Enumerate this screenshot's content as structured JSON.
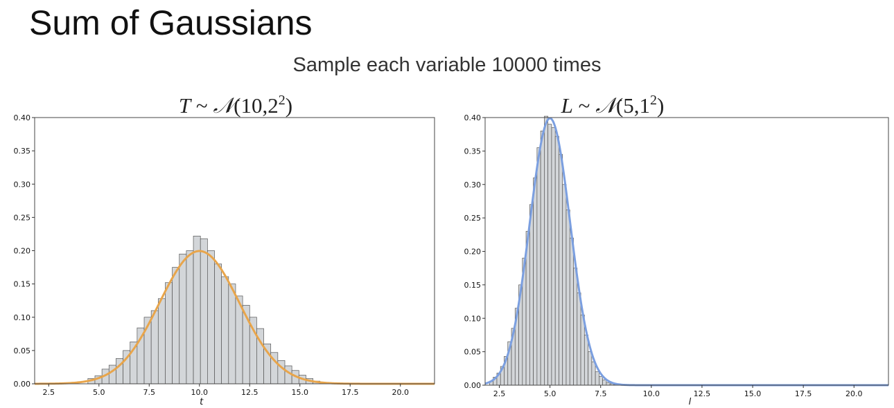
{
  "slide": {
    "title": "Sum of Gaussians",
    "subtitle": "Sample each variable 10000 times"
  },
  "chart_data": [
    {
      "type": "bar",
      "title": "T ~ 𝒩(10,2²)",
      "title_parts": {
        "var": "T",
        "dist": "(10,2",
        "exp": "2",
        "close": ")"
      },
      "xlabel": "t",
      "ylabel": "",
      "xlim": [
        1.8,
        21.7
      ],
      "ylim": [
        0,
        0.4
      ],
      "xticks": [
        "2.5",
        "5.0",
        "7.5",
        "10.0",
        "12.5",
        "15.0",
        "17.5",
        "20.0"
      ],
      "yticks": [
        "0.00",
        "0.05",
        "0.10",
        "0.15",
        "0.20",
        "0.25",
        "0.30",
        "0.35",
        "0.40"
      ],
      "grid": false,
      "histogram": {
        "bin_width": 0.35,
        "bins_start": [
          4.45,
          4.8,
          5.15,
          5.5,
          5.85,
          6.2,
          6.55,
          6.9,
          7.25,
          7.6,
          7.95,
          8.3,
          8.65,
          9.0,
          9.35,
          9.7,
          10.05,
          10.4,
          10.75,
          11.1,
          11.45,
          11.8,
          12.15,
          12.5,
          12.85,
          13.2,
          13.55,
          13.9,
          14.25,
          14.6,
          14.95,
          15.3,
          15.65
        ],
        "values": [
          0.008,
          0.012,
          0.022,
          0.028,
          0.038,
          0.05,
          0.063,
          0.084,
          0.1,
          0.11,
          0.128,
          0.152,
          0.175,
          0.195,
          0.2,
          0.222,
          0.218,
          0.2,
          0.18,
          0.161,
          0.15,
          0.132,
          0.118,
          0.1,
          0.083,
          0.06,
          0.047,
          0.035,
          0.027,
          0.02,
          0.013,
          0.008,
          0.004
        ]
      },
      "density_curve": {
        "mean": 10,
        "sd": 2,
        "color": "#E8A54B"
      },
      "bar_color": "#D3D6D9",
      "bar_edge": "#555555"
    },
    {
      "type": "bar",
      "title": "L ~ 𝒩(5,1²)",
      "title_parts": {
        "var": "L",
        "dist": "(5,1",
        "exp": "2",
        "close": ")"
      },
      "xlabel": "l",
      "ylabel": "",
      "xlim": [
        1.8,
        21.7
      ],
      "ylim": [
        0,
        0.4
      ],
      "xticks": [
        "2.5",
        "5.0",
        "7.5",
        "10.0",
        "12.5",
        "15.0",
        "17.5",
        "20.0"
      ],
      "yticks": [
        "0.00",
        "0.05",
        "0.10",
        "0.15",
        "0.20",
        "0.25",
        "0.30",
        "0.35",
        "0.40"
      ],
      "grid": false,
      "histogram": {
        "bin_width": 0.18,
        "bins_start": [
          2.02,
          2.2,
          2.38,
          2.56,
          2.74,
          2.92,
          3.1,
          3.28,
          3.46,
          3.64,
          3.82,
          4.0,
          4.18,
          4.36,
          4.54,
          4.72,
          4.9,
          5.08,
          5.26,
          5.44,
          5.62,
          5.8,
          5.98,
          6.16,
          6.34,
          6.52,
          6.7,
          6.88,
          7.06,
          7.24,
          7.42,
          7.6,
          7.78,
          7.96,
          8.14
        ],
        "values": [
          0.006,
          0.012,
          0.018,
          0.028,
          0.043,
          0.065,
          0.085,
          0.115,
          0.15,
          0.19,
          0.23,
          0.27,
          0.31,
          0.355,
          0.38,
          0.402,
          0.39,
          0.385,
          0.372,
          0.345,
          0.3,
          0.262,
          0.22,
          0.175,
          0.138,
          0.105,
          0.075,
          0.05,
          0.035,
          0.02,
          0.013,
          0.008,
          0.004,
          0.002,
          0.001
        ]
      },
      "density_curve": {
        "mean": 5,
        "sd": 1,
        "color": "#7B9FE0"
      },
      "bar_color": "#D3D6D9",
      "bar_edge": "#555555"
    }
  ]
}
